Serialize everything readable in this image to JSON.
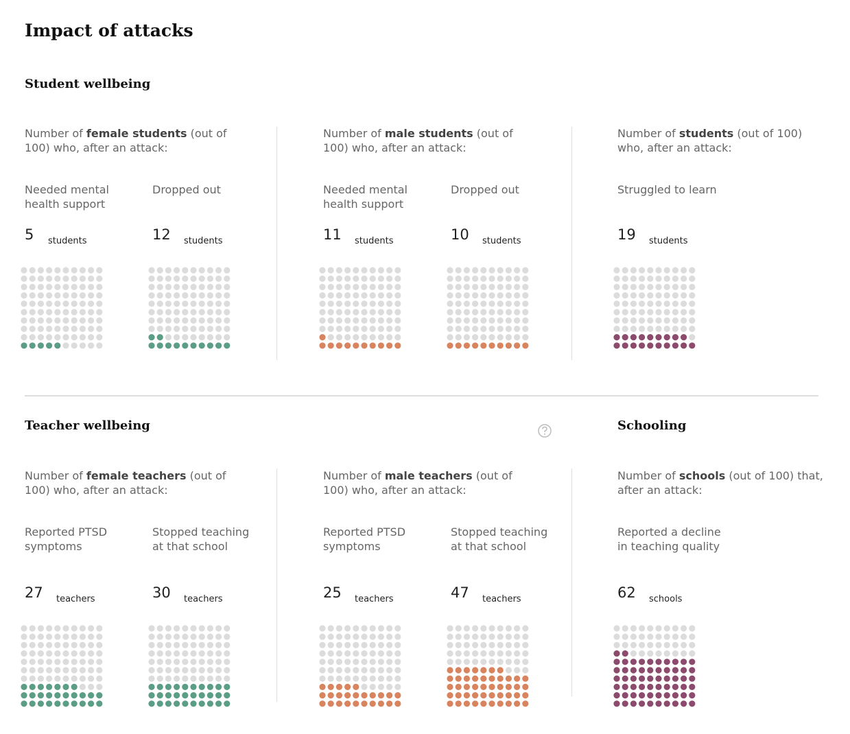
{
  "title": "Impact of attacks",
  "sections": [
    {
      "heading": "Student wellbeing",
      "groups": [
        {
          "intro": [
            "Number of ",
            "female students",
            " (out of 100) who, after an attack:"
          ],
          "color": "#5b9e85",
          "items": [
            {
              "label": "Needed mental health support",
              "value": 5,
              "unit": "students"
            },
            {
              "label": "Dropped out",
              "value": 12,
              "unit": "students"
            }
          ]
        },
        {
          "intro": [
            "Number of ",
            "male students",
            " (out of 100) who, after an attack:"
          ],
          "color": "#d8845f",
          "items": [
            {
              "label": "Needed mental health support",
              "value": 11,
              "unit": "students"
            },
            {
              "label": "Dropped out",
              "value": 10,
              "unit": "students"
            }
          ]
        },
        {
          "intro": [
            "Number of ",
            "students",
            " (out of 100) who, after an attack:"
          ],
          "color": "#8c4a6d",
          "items": [
            {
              "label": "Struggled to learn",
              "value": 19,
              "unit": "students"
            }
          ]
        }
      ]
    },
    {
      "heading": "Teacher wellbeing",
      "groups": [
        {
          "intro": [
            "Number of ",
            "female teachers",
            " (out of 100) who, after an attack:"
          ],
          "color": "#5b9e85",
          "items": [
            {
              "label": "Reported PTSD symptoms",
              "value": 27,
              "unit": "teachers"
            },
            {
              "label": "Stopped teaching at that school",
              "value": 30,
              "unit": "teachers"
            }
          ]
        },
        {
          "intro": [
            "Number of ",
            "male teachers",
            " (out of 100) who, after an attack:"
          ],
          "color": "#d8845f",
          "items": [
            {
              "label": "Reported PTSD symptoms",
              "value": 25,
              "unit": "teachers"
            },
            {
              "label": "Stopped teaching at that school",
              "value": 47,
              "unit": "teachers"
            }
          ]
        }
      ]
    },
    {
      "heading": "Schooling",
      "groups": [
        {
          "intro": [
            "Number of ",
            "schools",
            " (out of 100) that, after an attack:"
          ],
          "color": "#8c4a6d",
          "items": [
            {
              "label": "Reported a decline in teaching quality",
              "value": 62,
              "unit": "schools"
            }
          ]
        }
      ]
    }
  ]
}
